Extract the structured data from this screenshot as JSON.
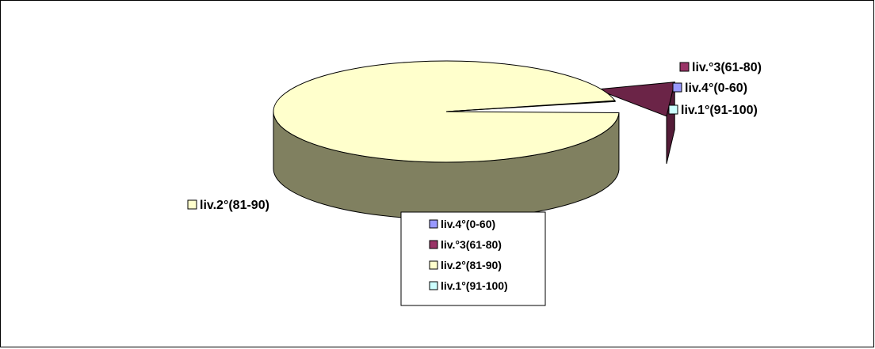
{
  "chart_data": {
    "type": "pie",
    "style": "3d-exploded",
    "categories": [
      "liv.4°(0-60)",
      "liv.°3(61-80)",
      "liv.2°(81-90)",
      "liv.1°(91-100)"
    ],
    "values": [
      0.2,
      3.3,
      96.3,
      0.2
    ],
    "colors": [
      "#9999ff",
      "#993366",
      "#ffffcc",
      "#ccffff"
    ],
    "legend_position": "bottom"
  }
}
